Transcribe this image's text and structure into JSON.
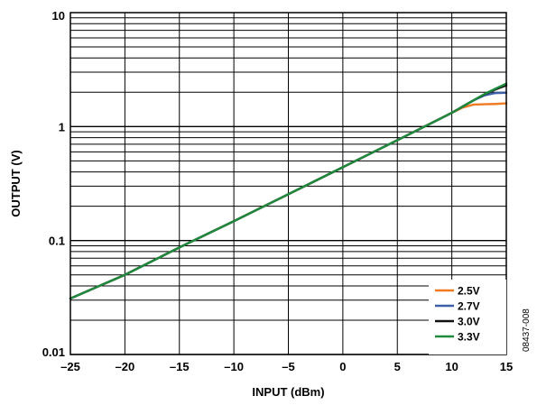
{
  "chart_data": {
    "type": "line",
    "xlabel": "INPUT (dBm)",
    "ylabel": "OUTPUT (V)",
    "xlim": [
      -25,
      15
    ],
    "ylim": [
      0.01,
      10
    ],
    "yscale": "log",
    "grid": true,
    "legend_position": "bottom-right",
    "x_ticks": [
      -25,
      -20,
      -15,
      -10,
      -5,
      0,
      5,
      10,
      15
    ],
    "x_tick_labels": [
      "–25",
      "–20",
      "–15",
      "–10",
      "–5",
      "0",
      "5",
      "10",
      "15"
    ],
    "y_ticks": [
      0.01,
      0.1,
      1,
      10
    ],
    "y_tick_labels": [
      "0.01",
      "0.1",
      "1",
      "10"
    ],
    "figure_id": "08437-008",
    "series": [
      {
        "name": "2.5V",
        "color": "#f07a22",
        "x": [
          -25,
          -20,
          -15,
          -10,
          -5,
          0,
          5,
          10,
          11,
          12,
          13,
          14,
          15
        ],
        "y": [
          0.031,
          0.05,
          0.087,
          0.148,
          0.255,
          0.44,
          0.76,
          1.32,
          1.47,
          1.56,
          1.57,
          1.58,
          1.6
        ]
      },
      {
        "name": "2.7V",
        "color": "#3d5fa8",
        "x": [
          -25,
          -20,
          -15,
          -10,
          -5,
          0,
          5,
          10,
          11,
          12,
          13,
          14,
          15
        ],
        "y": [
          0.031,
          0.05,
          0.087,
          0.148,
          0.255,
          0.44,
          0.76,
          1.32,
          1.5,
          1.7,
          1.88,
          1.97,
          1.98
        ]
      },
      {
        "name": "3.0V",
        "color": "#111111",
        "x": [
          -25,
          -20,
          -15,
          -10,
          -5,
          0,
          5,
          10,
          11,
          12,
          13,
          14,
          15
        ],
        "y": [
          0.031,
          0.05,
          0.087,
          0.148,
          0.255,
          0.44,
          0.76,
          1.32,
          1.5,
          1.7,
          1.92,
          2.12,
          2.3
        ]
      },
      {
        "name": "3.3V",
        "color": "#1f8a3c",
        "x": [
          -25,
          -20,
          -15,
          -10,
          -5,
          0,
          5,
          10,
          11,
          12,
          13,
          14,
          15
        ],
        "y": [
          0.031,
          0.05,
          0.087,
          0.148,
          0.255,
          0.44,
          0.76,
          1.32,
          1.5,
          1.7,
          1.93,
          2.15,
          2.38
        ]
      }
    ]
  }
}
